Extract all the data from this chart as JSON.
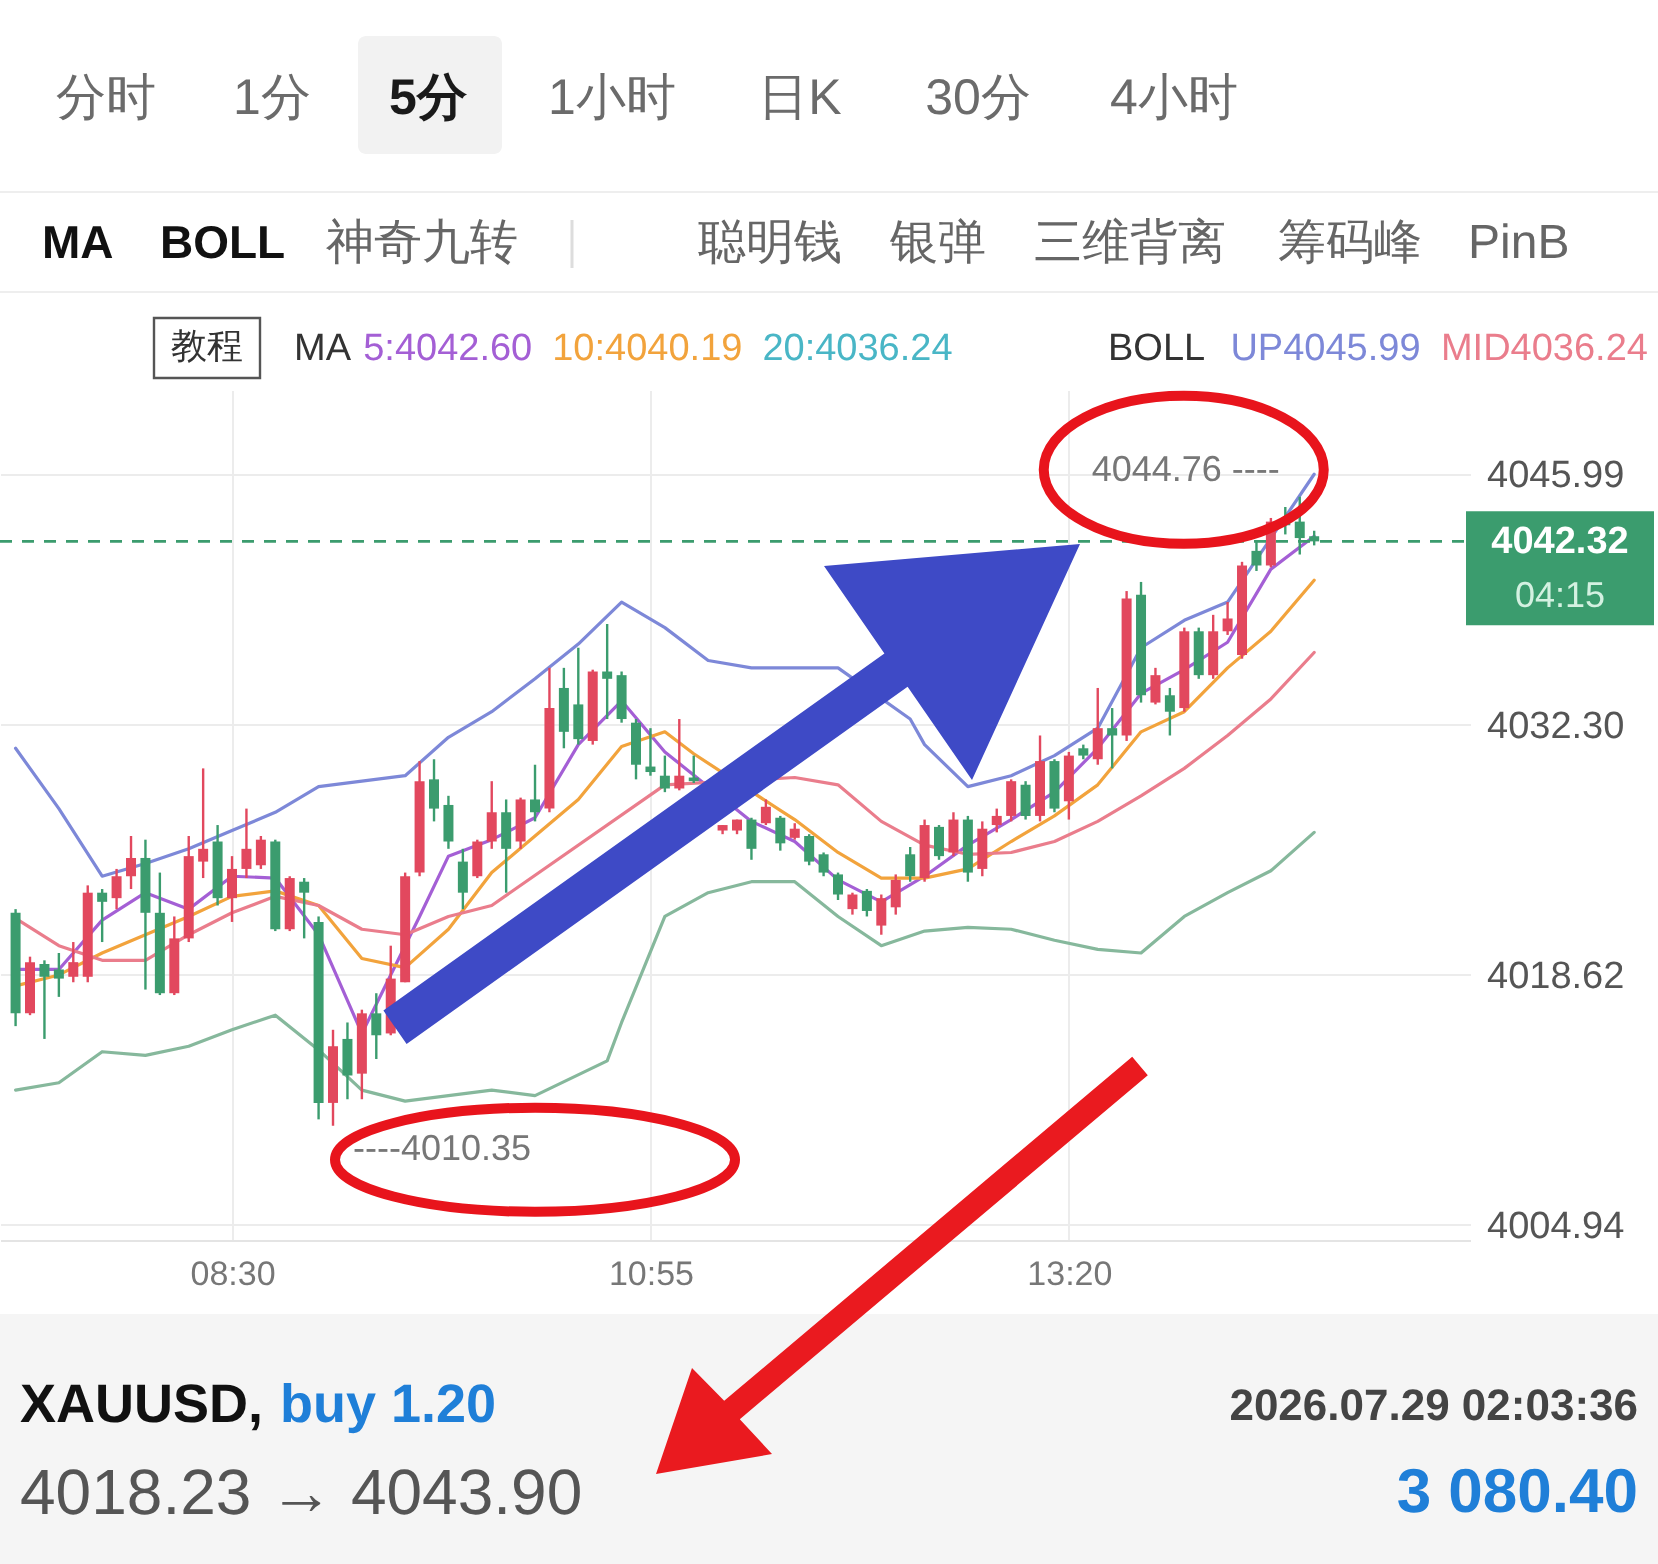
{
  "chart_data": {
    "type": "candlestick",
    "x": [
      7.25,
      7.3333,
      7.4167,
      7.5,
      7.5833,
      7.6667,
      7.75,
      7.8333,
      7.9167,
      8,
      8.0833,
      8.1667,
      8.25,
      8.3333,
      8.4167,
      8.5,
      8.5833,
      8.6667,
      8.75,
      8.8333,
      8.9167,
      9,
      9.0833,
      9.1667,
      9.25,
      9.3333,
      9.4167,
      9.5,
      9.5833,
      9.6667,
      9.75,
      9.8333,
      9.9167,
      10,
      10.0833,
      10.1667,
      10.25,
      10.3333,
      10.4167,
      10.5,
      10.5833,
      10.6667,
      10.75,
      10.8333,
      10.9167,
      11,
      11.0833,
      11.1667,
      11.3333,
      11.4167,
      11.5,
      11.5833,
      11.6667,
      11.75,
      11.8333,
      11.9167,
      12,
      12.0833,
      12.1667,
      12.25,
      12.3333,
      12.4167,
      12.5,
      12.5833,
      12.6667,
      12.75,
      12.8333,
      12.9167,
      13,
      13.0833,
      13.1667,
      13.25,
      13.3333,
      13.4167,
      13.5,
      13.5833,
      13.6667,
      13.75,
      13.8333,
      13.9167,
      14,
      14.0833,
      14.1667,
      14.25,
      14.3333,
      14.4167,
      14.5,
      14.5833,
      14.6667,
      14.75
    ],
    "ohlc": [
      [
        4022.0,
        4022.2,
        4015.8,
        4016.5
      ],
      [
        4016.5,
        4019.6,
        4016.4,
        4019.3
      ],
      [
        4019.2,
        4019.4,
        4015.1,
        4018.5
      ],
      [
        4018.9,
        4019.8,
        4017.4,
        4018.4
      ],
      [
        4018.5,
        4020.4,
        4018.2,
        4019.3
      ],
      [
        4018.5,
        4023.5,
        4018.2,
        4023.1
      ],
      [
        4023.1,
        4023.3,
        4020.4,
        4022.6
      ],
      [
        4022.8,
        4024.4,
        4022.2,
        4024.0
      ],
      [
        4024.0,
        4026.2,
        4023.3,
        4025.0
      ],
      [
        4025.0,
        4026.0,
        4017.8,
        4022.0
      ],
      [
        4022.0,
        4024.2,
        4017.5,
        4017.6
      ],
      [
        4017.6,
        4021.8,
        4017.5,
        4020.6
      ],
      [
        4020.6,
        4026.2,
        4020.4,
        4025.1
      ],
      [
        4024.8,
        4029.9,
        4023.9,
        4025.5
      ],
      [
        4025.9,
        4026.8,
        4022.4,
        4022.8
      ],
      [
        4022.8,
        4025.1,
        4021.5,
        4024.4
      ],
      [
        4024.4,
        4027.7,
        4023.9,
        4025.5
      ],
      [
        4024.6,
        4026.2,
        4024.4,
        4026.0
      ],
      [
        4025.9,
        4026.0,
        4021.0,
        4021.1
      ],
      [
        4021.1,
        4024.0,
        4021.0,
        4023.9
      ],
      [
        4023.7,
        4023.9,
        4020.6,
        4023.1
      ],
      [
        4021.5,
        4021.8,
        4010.7,
        4011.6
      ],
      [
        4011.6,
        4015.6,
        4010.35,
        4014.7
      ],
      [
        4015.1,
        4016.0,
        4011.8,
        4013.1
      ],
      [
        4013.2,
        4016.7,
        4011.8,
        4016.5
      ],
      [
        4016.5,
        4017.6,
        4014.0,
        4015.3
      ],
      [
        4015.4,
        4020.2,
        4015.3,
        4018.4
      ],
      [
        4018.2,
        4024.2,
        4018.2,
        4024.0
      ],
      [
        4024.2,
        4030.3,
        4024.0,
        4029.2
      ],
      [
        4029.3,
        4030.4,
        4027.0,
        4027.7
      ],
      [
        4027.9,
        4028.4,
        4025.5,
        4025.9
      ],
      [
        4024.8,
        4025.5,
        4022.2,
        4023.1
      ],
      [
        4024.0,
        4026.0,
        4023.9,
        4025.9
      ],
      [
        4025.9,
        4029.2,
        4025.5,
        4027.5
      ],
      [
        4027.5,
        4028.2,
        4023.1,
        4025.5
      ],
      [
        4025.9,
        4028.3,
        4025.5,
        4028.2
      ],
      [
        4028.2,
        4030.1,
        4027.0,
        4027.5
      ],
      [
        4027.7,
        4035.4,
        4027.5,
        4033.2
      ],
      [
        4034.3,
        4035.4,
        4031.0,
        4031.9
      ],
      [
        4033.4,
        4036.5,
        4031.2,
        4031.5
      ],
      [
        4031.4,
        4035.3,
        4031.2,
        4035.2
      ],
      [
        4035.2,
        4037.8,
        4032.6,
        4034.8
      ],
      [
        4035.0,
        4035.2,
        4032.4,
        4032.6
      ],
      [
        4032.4,
        4032.6,
        4029.3,
        4030.1
      ],
      [
        4030.0,
        4032.1,
        4029.5,
        4029.7
      ],
      [
        4029.5,
        4030.6,
        4028.6,
        4028.8
      ],
      [
        4028.8,
        4032.6,
        4028.7,
        4029.5
      ],
      [
        4029.4,
        4030.6,
        4029.1,
        4029.2
      ],
      [
        4026.5,
        4026.8,
        4026.3,
        4026.8
      ],
      [
        4026.5,
        4027.1,
        4026.3,
        4027.1
      ],
      [
        4027.1,
        4027.2,
        4024.9,
        4025.5
      ],
      [
        4026.9,
        4028.2,
        4026.8,
        4027.8
      ],
      [
        4027.2,
        4027.3,
        4025.4,
        4025.8
      ],
      [
        4026.1,
        4026.9,
        4026.0,
        4026.6
      ],
      [
        4026.2,
        4026.3,
        4024.6,
        4024.8
      ],
      [
        4025.2,
        4025.3,
        4024.0,
        4024.2
      ],
      [
        4024.1,
        4024.2,
        4022.7,
        4023.0
      ],
      [
        4022.2,
        4023.1,
        4021.9,
        4023.0
      ],
      [
        4023.2,
        4023.3,
        4021.8,
        4022.1
      ],
      [
        4021.3,
        4023.0,
        4020.8,
        4022.8
      ],
      [
        4022.3,
        4024.1,
        4021.9,
        4023.8
      ],
      [
        4025.2,
        4025.6,
        4023.7,
        4024.0
      ],
      [
        4023.9,
        4027.1,
        4023.7,
        4026.8
      ],
      [
        4026.7,
        4026.8,
        4024.9,
        4025.1
      ],
      [
        4025.3,
        4027.5,
        4025.1,
        4027.1
      ],
      [
        4027.1,
        4027.3,
        4023.7,
        4024.2
      ],
      [
        4024.4,
        4027.0,
        4024.0,
        4026.6
      ],
      [
        4026.8,
        4027.7,
        4026.4,
        4027.3
      ],
      [
        4027.3,
        4029.3,
        4027.0,
        4029.2
      ],
      [
        4029.0,
        4029.2,
        4027.1,
        4027.3
      ],
      [
        4027.3,
        4031.7,
        4027.0,
        4030.3
      ],
      [
        4030.3,
        4030.4,
        4027.5,
        4027.7
      ],
      [
        4028.1,
        4030.8,
        4027.1,
        4030.6
      ],
      [
        4031.0,
        4031.2,
        4030.4,
        4030.6
      ],
      [
        4030.4,
        4034.3,
        4030.1,
        4032.1
      ],
      [
        4032.1,
        4033.2,
        4029.9,
        4031.7
      ],
      [
        4031.7,
        4039.6,
        4031.4,
        4039.2
      ],
      [
        4039.4,
        4040.1,
        4033.5,
        4033.9
      ],
      [
        4033.5,
        4035.4,
        4033.4,
        4035.0
      ],
      [
        4033.9,
        4034.3,
        4031.7,
        4033.0
      ],
      [
        4033.2,
        4037.6,
        4033.0,
        4037.4
      ],
      [
        4037.4,
        4037.6,
        4034.8,
        4035.0
      ],
      [
        4035.0,
        4038.3,
        4034.8,
        4037.4
      ],
      [
        4037.4,
        4039.0,
        4037.2,
        4038.1
      ],
      [
        4036.1,
        4041.2,
        4035.9,
        4041.0
      ],
      [
        4041.8,
        4042.3,
        4040.7,
        4041.0
      ],
      [
        4041.0,
        4043.6,
        4040.9,
        4043.4
      ],
      [
        4043.6,
        4044.2,
        4042.7,
        4043.2
      ],
      [
        4043.4,
        4044.76,
        4041.6,
        4042.5
      ],
      [
        4042.6,
        4042.9,
        4042.1,
        4042.32
      ]
    ],
    "colors": [
      "#3b9c6e",
      "#e2485e",
      "#3b9c6e",
      "#3b9c6e",
      "#e2485e",
      "#e2485e",
      "#3b9c6e",
      "#e2485e",
      "#e2485e",
      "#3b9c6e",
      "#3b9c6e",
      "#e2485e",
      "#e2485e",
      "#e2485e",
      "#3b9c6e",
      "#e2485e",
      "#e2485e",
      "#e2485e",
      "#3b9c6e",
      "#e2485e",
      "#3b9c6e",
      "#3b9c6e",
      "#e2485e",
      "#3b9c6e",
      "#e2485e",
      "#3b9c6e",
      "#e2485e",
      "#e2485e",
      "#e2485e",
      "#3b9c6e",
      "#3b9c6e",
      "#3b9c6e",
      "#e2485e",
      "#e2485e",
      "#3b9c6e",
      "#e2485e",
      "#3b9c6e",
      "#e2485e",
      "#3b9c6e",
      "#3b9c6e",
      "#e2485e",
      "#3b9c6e",
      "#3b9c6e",
      "#3b9c6e",
      "#3b9c6e",
      "#3b9c6e",
      "#e2485e",
      "#3b9c6e",
      "#e2485e",
      "#e2485e",
      "#3b9c6e",
      "#e2485e",
      "#3b9c6e",
      "#e2485e",
      "#3b9c6e",
      "#3b9c6e",
      "#3b9c6e",
      "#e2485e",
      "#3b9c6e",
      "#e2485e",
      "#e2485e",
      "#3b9c6e",
      "#e2485e",
      "#3b9c6e",
      "#e2485e",
      "#3b9c6e",
      "#e2485e",
      "#e2485e",
      "#e2485e",
      "#3b9c6e",
      "#e2485e",
      "#3b9c6e",
      "#e2485e",
      "#3b9c6e",
      "#e2485e",
      "#3b9c6e",
      "#e2485e",
      "#3b9c6e",
      "#e2485e",
      "#3b9c6e",
      "#e2485e",
      "#3b9c6e",
      "#e2485e",
      "#e2485e",
      "#e2485e",
      "#3b9c6e",
      "#e2485e",
      "#3b9c6e",
      "#3b9c6e",
      "#3b9c6e"
    ],
    "series": [
      {
        "name": "5:4042.60",
        "type": "line",
        "color": "#a45fd5",
        "x": [
          7.25,
          7.5,
          7.75,
          8,
          8.25,
          8.5,
          8.75,
          9,
          9.25,
          9.5833,
          9.75,
          10,
          10.25,
          10.5,
          10.75,
          11,
          11.5,
          11.75,
          12,
          12.25,
          12.5,
          12.75,
          13,
          13.25,
          13.5,
          13.75,
          14,
          14.25,
          14.5,
          14.75
        ],
        "values": [
          4018.9,
          4018.9,
          4021.6,
          4023.1,
          4022.2,
          4024.0,
          4023.9,
          4020.8,
          4015.4,
          4021.8,
          4025.1,
          4026.0,
          4027.2,
          4031.2,
          4033.6,
          4030.8,
          4027.0,
          4025.9,
          4023.8,
          4022.6,
          4024.0,
          4025.7,
          4027.1,
          4028.6,
          4031.0,
          4034.0,
          4035.3,
          4036.8,
          4040.8,
          4042.6
        ]
      },
      {
        "name": "10:4040.19",
        "type": "line",
        "color": "#f2a33c",
        "x": [
          7.25,
          7.5,
          7.75,
          8,
          8.25,
          8.5,
          8.75,
          9,
          9.25,
          9.5,
          9.75,
          10,
          10.25,
          10.5,
          10.75,
          11,
          11.1667,
          11.6667,
          11.75,
          12,
          12.25,
          12.5,
          12.75,
          13,
          13.25,
          13.5,
          13.75,
          14,
          14.25,
          14.5,
          14.75
        ],
        "values": [
          4018.0,
          4018.6,
          4019.8,
          4020.8,
          4021.8,
          4022.9,
          4023.2,
          4022.4,
          4019.5,
          4019.0,
          4021.1,
          4024.2,
          4026.2,
          4028.2,
          4031.1,
          4031.9,
          4030.7,
          4027.6,
          4027.1,
          4025.3,
          4023.9,
          4023.9,
          4024.4,
          4025.9,
          4027.3,
          4029.0,
          4031.9,
          4033.0,
          4035.4,
          4037.4,
          4040.19
        ]
      },
      {
        "name": "20:4036.24",
        "type": "line",
        "color": "#49b6c6",
        "values": [
          null,
          null,
          null,
          null,
          null,
          null,
          null,
          null,
          null,
          null,
          null,
          null,
          null,
          null,
          null,
          null,
          null,
          null,
          null,
          null,
          null,
          null,
          null,
          null,
          null,
          null,
          null,
          null,
          null,
          null,
          null,
          null,
          null,
          null,
          null,
          null,
          null,
          null,
          null,
          null,
          null,
          null,
          null,
          null,
          null,
          null,
          null,
          null,
          null,
          null,
          null,
          null,
          null,
          null,
          null,
          null,
          null,
          null,
          null,
          null,
          null,
          null,
          null,
          null,
          null,
          null,
          null,
          null,
          null,
          null,
          null,
          null,
          null,
          null,
          null,
          null,
          null,
          null,
          null,
          null,
          null,
          null,
          null,
          null,
          null,
          null,
          null,
          null,
          null,
          null
        ]
      },
      {
        "name": "UP4045.99",
        "type": "line",
        "color": "#7d88d8",
        "x": [
          7.25,
          7.5,
          7.75,
          8,
          8.25,
          8.5,
          8.75,
          9,
          9.25,
          9.5,
          9.75,
          10,
          10.25,
          10.5,
          10.75,
          11,
          11.25,
          11.5,
          11.75,
          12,
          12.4167,
          12.5,
          12.75,
          13,
          13.25,
          13.5,
          13.75,
          14,
          14.25,
          14.75
        ],
        "values": [
          4031.0,
          4027.7,
          4024.0,
          4024.7,
          4025.5,
          4026.5,
          4027.5,
          4028.9,
          4029.2,
          4029.5,
          4031.6,
          4033.0,
          4034.8,
          4036.7,
          4039.0,
          4037.6,
          4035.8,
          4035.4,
          4035.4,
          4035.4,
          4032.6,
          4031.2,
          4028.9,
          4029.5,
          4030.6,
          4032.1,
          4036.5,
          4038.0,
          4039.0,
          4045.99
        ]
      },
      {
        "name": "MID4036.24",
        "type": "line",
        "color": "#ea7d8c",
        "x": [
          7.25,
          7.5,
          7.75,
          8,
          8.25,
          8.5,
          8.75,
          9,
          9.25,
          9.5,
          9.75,
          10,
          11,
          11.75,
          12,
          12.25,
          12.5,
          12.75,
          13,
          13.25,
          13.5,
          13.75,
          14,
          14.25,
          14.5,
          14.75
        ],
        "values": [
          4021.7,
          4020.2,
          4019.4,
          4019.4,
          4020.8,
          4022.0,
          4022.9,
          4022.4,
          4021.1,
          4020.8,
          4021.8,
          4022.4,
          4029.0,
          4029.4,
          4029.0,
          4027.0,
          4025.7,
          4025.2,
          4025.3,
          4025.9,
          4027.0,
          4028.4,
          4029.9,
          4031.7,
          4033.7,
          4036.24
        ]
      },
      {
        "type": "line",
        "color": "#86b89c",
        "x": [
          7.25,
          7.5,
          7.75,
          8,
          8.25,
          8.5,
          8.75,
          9,
          9.25,
          9.5,
          9.75,
          10,
          10.25,
          10.6667,
          10.75,
          11,
          11.25,
          11.5,
          11.75,
          12,
          12.25,
          12.5,
          12.75,
          13,
          13.25,
          13.5,
          13.75,
          14,
          14.25,
          14.5,
          14.75
        ],
        "values": [
          4012.3,
          4012.7,
          4014.4,
          4014.2,
          4014.7,
          4015.6,
          4016.4,
          4014.5,
          4012.3,
          4011.7,
          4012.0,
          4012.3,
          4012.0,
          4013.9,
          4016.0,
          4021.8,
          4023.1,
          4023.7,
          4023.7,
          4021.8,
          4020.2,
          4021.0,
          4021.2,
          4021.1,
          4020.5,
          4020.0,
          4019.8,
          4021.8,
          4023.1,
          4024.3,
          4026.4
        ]
      }
    ],
    "xlim": [
      7.16,
      15.65
    ],
    "ylim": [
      4004.1,
      4050.6
    ],
    "xticks": [
      {
        "value": 8.5,
        "label": "08:30"
      },
      {
        "value": 10.9167,
        "label": "10:55"
      },
      {
        "value": 13.3333,
        "label": "13:20"
      }
    ],
    "yticks": [
      4004.94,
      4018.62,
      {
        "value": 4032.3,
        "label": "4032.30"
      },
      4045.99
    ],
    "ref_lines": [
      {
        "axis": "y",
        "value": 4042.32,
        "label": "4042.32",
        "color": "#3b9c6e",
        "line_style": "dashed"
      }
    ],
    "grid": true,
    "legend": "top",
    "annotations": [
      "分时",
      "1分",
      "5分",
      "1小时",
      "日K",
      "30分",
      "4小时",
      "MA",
      "BOLL",
      "神奇九转",
      "聪明钱",
      "银弹",
      "三维背离",
      "筹码峰",
      "PinB",
      "教程",
      "MA",
      "BOLL",
      "04:15",
      "XAUUSD,",
      "buy 1.20",
      "2026.07.29 02:03:36",
      "4018.23 → 4043.90",
      "3 080.40",
      {
        "text": "4044.76 ----",
        "x": 14.6667,
        "y": 4044.76
      },
      {
        "text": "----4010.35",
        "x": 9.0833,
        "y": 4010.35
      }
    ]
  }
}
